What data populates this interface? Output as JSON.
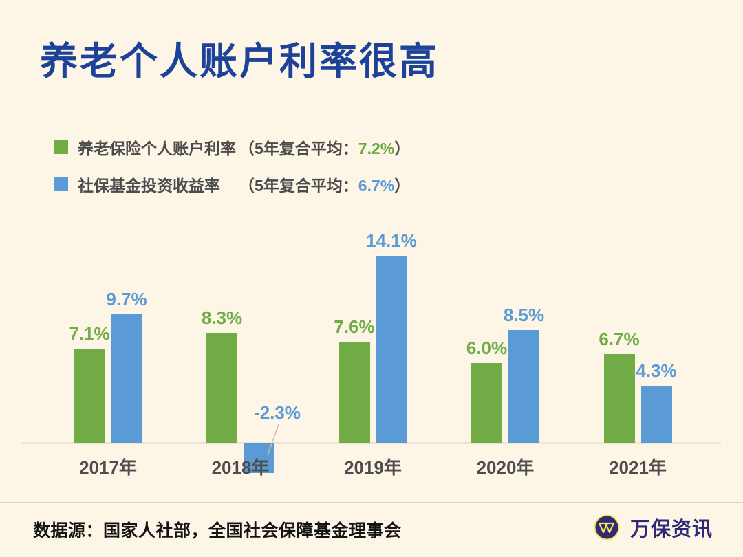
{
  "header": {
    "title": "养老个人账户利率很高",
    "title_color": "#1C4399"
  },
  "legend": {
    "items": [
      {
        "label": "养老保险个人账户利率",
        "swatch_color": "#71AC47",
        "paren_prefix": "（5年复合平均：",
        "avg_value": "7.2%",
        "paren_suffix": "）",
        "avg_color": "#6CA83F"
      },
      {
        "label": "社保基金投资收益率",
        "swatch_color": "#5B9BD5",
        "paren_prefix": "（5年复合平均：",
        "avg_value": "6.7%",
        "paren_suffix": "）",
        "avg_color": "#5B9BD5"
      }
    ]
  },
  "chart_data": {
    "type": "bar",
    "title": "养老个人账户利率很高",
    "xlabel": "",
    "ylabel": "",
    "unit": "%",
    "grid": false,
    "legend_position": "top-left",
    "categories": [
      "2017年",
      "2018年",
      "2019年",
      "2020年",
      "2021年"
    ],
    "series": [
      {
        "name": "养老保险个人账户利率",
        "color": "#71AC47",
        "values": [
          7.1,
          8.3,
          7.6,
          6.0,
          6.7
        ],
        "labels": [
          "7.1%",
          "8.3%",
          "7.6%",
          "6.0%",
          "6.7%"
        ]
      },
      {
        "name": "社保基金投资收益率",
        "color": "#5B9BD5",
        "values": [
          9.7,
          -2.3,
          14.1,
          8.5,
          4.3
        ],
        "labels": [
          "9.7%",
          "-2.3%",
          "14.1%",
          "8.5%",
          "4.3%"
        ]
      }
    ],
    "negative_annotation": {
      "series_index": 1,
      "category_index": 1,
      "label": "-2.3%"
    }
  },
  "footer": {
    "source": "数据源：国家人社部，全国社会保障基金理事会",
    "brand": "万保资讯"
  },
  "colors": {
    "background": "#FDF6E7",
    "bar_green": "#71AC47",
    "bar_blue": "#5B9BD5",
    "divider": "#D9D6CB",
    "axis_line": "#EDE5D3",
    "category_label": "#4D4D4D",
    "legend_label": "#4B4B4B",
    "footer_text": "#141414",
    "brand_color": "#2F2878",
    "logo_ring_yellow": "#F2E94E",
    "logo_circle_navy": "#2E2A76"
  }
}
